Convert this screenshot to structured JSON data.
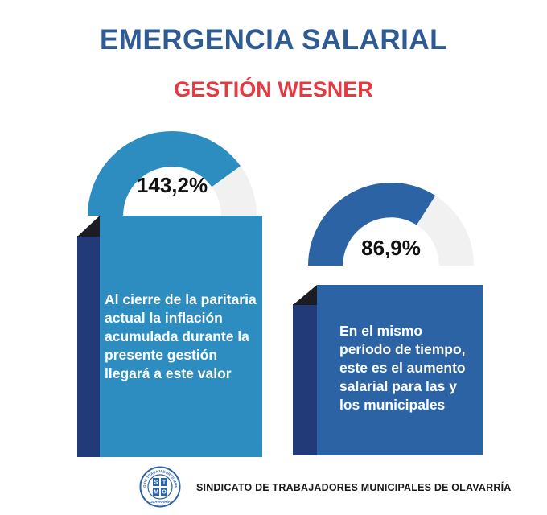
{
  "header": {
    "title": "EMERGENCIA SALARIAL",
    "subtitle": "GESTIÓN WESNER"
  },
  "cards": [
    {
      "percent_label": "143,2%",
      "gauge_fill_fraction": 0.8,
      "gauge_color": "#2d8dc0",
      "panel_color": "#2d8dc0",
      "text_lines": [
        "Al cierre de la paritaria",
        "actual la inflación",
        "acumulada durante la",
        "presente gestión",
        "llegará a este valor"
      ]
    },
    {
      "percent_label": "86,9%",
      "gauge_fill_fraction": 0.68,
      "gauge_color": "#2c63a5",
      "panel_color": "#2c63a5",
      "text_lines": [
        "En el mismo",
        "período de tiempo,",
        "este es el aumento",
        "salarial para las y",
        "los municipales"
      ]
    }
  ],
  "footer": {
    "logo_letters": [
      "S",
      "T",
      "M",
      "O"
    ],
    "logo_ring_text": "SINDICATO DE TRABAJADORES MUNICIPALES",
    "logo_bottom_text": "OLAVARRÍA",
    "text": "SINDICATO DE TRABAJADORES MUNICIPALES DE OLAVARRÍA"
  },
  "colors": {
    "title": "#2e5b93",
    "subtitle": "#e3393f",
    "gauge_track": "#f1f1f2",
    "panel_side": "#223a78",
    "panel_fold": "#1c1c24"
  }
}
